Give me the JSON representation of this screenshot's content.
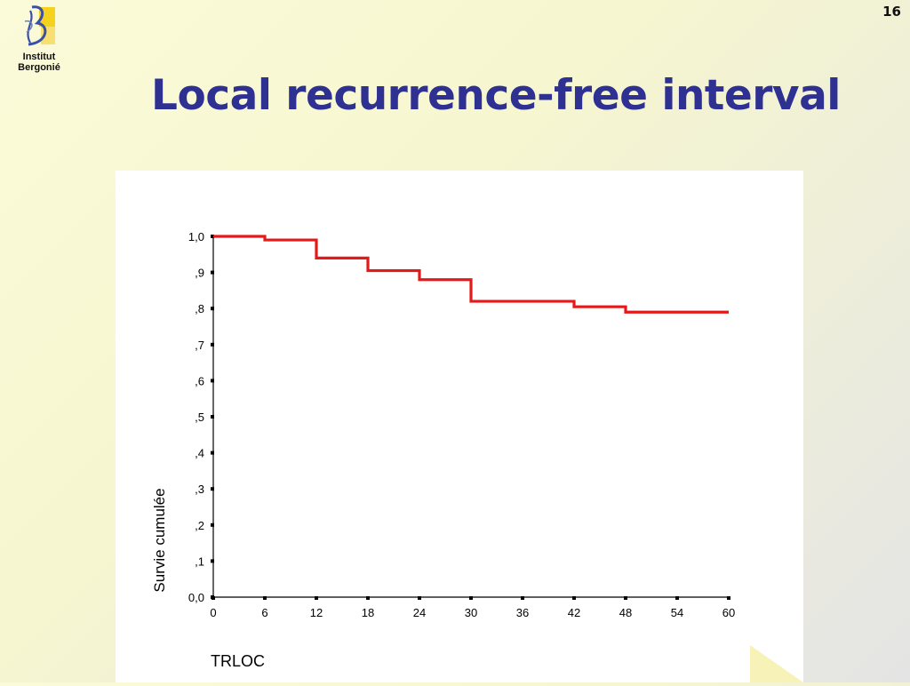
{
  "slide": {
    "number": "16",
    "logo_text_line1": "Institut",
    "logo_text_line2": "Bergonié",
    "title": "Local recurrence-free interval"
  },
  "colors": {
    "title": "#2e3192",
    "curve": "#e41a1a",
    "logo_blue": "#3a4fa8",
    "logo_yellow": "#f5d21e"
  },
  "chart_data": {
    "type": "line",
    "subtype": "step (Kaplan-Meier)",
    "title": "",
    "xlabel": "TRLOC",
    "ylabel": "Survie cumulée",
    "xlim": [
      0,
      60
    ],
    "ylim": [
      0,
      1
    ],
    "x_ticks": [
      0,
      6,
      12,
      18,
      24,
      30,
      36,
      42,
      48,
      54,
      60
    ],
    "x_tick_labels": [
      "0",
      "6",
      "12",
      "18",
      "24",
      "30",
      "36",
      "42",
      "48",
      "54",
      "60"
    ],
    "y_ticks": [
      0,
      0.1,
      0.2,
      0.3,
      0.4,
      0.5,
      0.6,
      0.7,
      0.8,
      0.9,
      1.0
    ],
    "y_tick_labels": [
      "0,0",
      ",1",
      ",2",
      ",3",
      ",4",
      ",5",
      ",6",
      ",7",
      ",8",
      ",9",
      "1,0"
    ],
    "grid": false,
    "series": [
      {
        "x": [
          0,
          6,
          12,
          18,
          24,
          30,
          42,
          48,
          60
        ],
        "y": [
          1.0,
          0.99,
          0.94,
          0.905,
          0.88,
          0.82,
          0.805,
          0.79,
          0.79
        ]
      }
    ]
  }
}
